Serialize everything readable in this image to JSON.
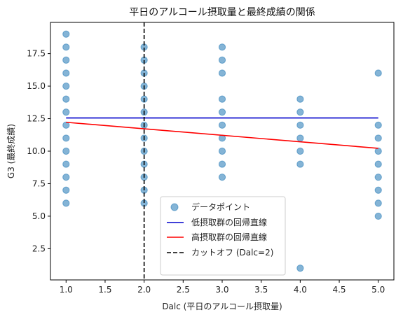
{
  "chart_data": {
    "type": "scatter",
    "title": "平日のアルコール摂取量と最終成績の関係",
    "xlabel": "Dalc (平日のアルコール摂取量)",
    "ylabel": "G3 (最終成績)",
    "xlim": [
      0.8,
      5.2
    ],
    "ylim": [
      0.1,
      19.9
    ],
    "xticks": [
      1.0,
      1.5,
      2.0,
      2.5,
      3.0,
      3.5,
      4.0,
      4.5,
      5.0
    ],
    "xtick_labels": [
      "1.0",
      "1.5",
      "2.0",
      "2.5",
      "3.0",
      "3.5",
      "4.0",
      "4.5",
      "5.0"
    ],
    "yticks": [
      2.5,
      5.0,
      7.5,
      10.0,
      12.5,
      15.0,
      17.5
    ],
    "ytick_labels": [
      "2.5",
      "5.0",
      "7.5",
      "10.0",
      "12.5",
      "15.0",
      "17.5"
    ],
    "legend_position": "bottom-center",
    "colors": {
      "points": "#1f77b4",
      "low_line": "#0000cc",
      "high_line": "#ff0000",
      "cutoff": "#000000"
    },
    "series": [
      {
        "name": "データポイント",
        "kind": "scatter",
        "points": [
          {
            "x": 1,
            "y": 6
          },
          {
            "x": 1,
            "y": 7
          },
          {
            "x": 1,
            "y": 8
          },
          {
            "x": 1,
            "y": 9
          },
          {
            "x": 1,
            "y": 10
          },
          {
            "x": 1,
            "y": 11
          },
          {
            "x": 1,
            "y": 12
          },
          {
            "x": 1,
            "y": 13
          },
          {
            "x": 1,
            "y": 14
          },
          {
            "x": 1,
            "y": 15
          },
          {
            "x": 1,
            "y": 16
          },
          {
            "x": 1,
            "y": 17
          },
          {
            "x": 1,
            "y": 18
          },
          {
            "x": 1,
            "y": 19
          },
          {
            "x": 2,
            "y": 6
          },
          {
            "x": 2,
            "y": 7
          },
          {
            "x": 2,
            "y": 8
          },
          {
            "x": 2,
            "y": 9
          },
          {
            "x": 2,
            "y": 10
          },
          {
            "x": 2,
            "y": 11
          },
          {
            "x": 2,
            "y": 12
          },
          {
            "x": 2,
            "y": 13
          },
          {
            "x": 2,
            "y": 14
          },
          {
            "x": 2,
            "y": 15
          },
          {
            "x": 2,
            "y": 16
          },
          {
            "x": 2,
            "y": 17
          },
          {
            "x": 2,
            "y": 18
          },
          {
            "x": 3,
            "y": 8
          },
          {
            "x": 3,
            "y": 9
          },
          {
            "x": 3,
            "y": 10
          },
          {
            "x": 3,
            "y": 11
          },
          {
            "x": 3,
            "y": 12
          },
          {
            "x": 3,
            "y": 13
          },
          {
            "x": 3,
            "y": 14
          },
          {
            "x": 3,
            "y": 16
          },
          {
            "x": 3,
            "y": 17
          },
          {
            "x": 3,
            "y": 18
          },
          {
            "x": 4,
            "y": 1
          },
          {
            "x": 4,
            "y": 9
          },
          {
            "x": 4,
            "y": 10
          },
          {
            "x": 4,
            "y": 11
          },
          {
            "x": 4,
            "y": 12
          },
          {
            "x": 4,
            "y": 13
          },
          {
            "x": 4,
            "y": 14
          },
          {
            "x": 5,
            "y": 5
          },
          {
            "x": 5,
            "y": 6
          },
          {
            "x": 5,
            "y": 7
          },
          {
            "x": 5,
            "y": 8
          },
          {
            "x": 5,
            "y": 9
          },
          {
            "x": 5,
            "y": 10
          },
          {
            "x": 5,
            "y": 11
          },
          {
            "x": 5,
            "y": 12
          },
          {
            "x": 5,
            "y": 16
          }
        ]
      },
      {
        "name": "低摂取群の回帰直線",
        "kind": "line",
        "points": [
          {
            "x": 1,
            "y": 12.55
          },
          {
            "x": 5,
            "y": 12.55
          }
        ]
      },
      {
        "name": "高摂取群の回帰直線",
        "kind": "line",
        "points": [
          {
            "x": 1,
            "y": 12.22
          },
          {
            "x": 5,
            "y": 10.22
          }
        ]
      },
      {
        "name": "カットオフ (Dalc=2)",
        "kind": "vline",
        "x": 2
      }
    ]
  }
}
